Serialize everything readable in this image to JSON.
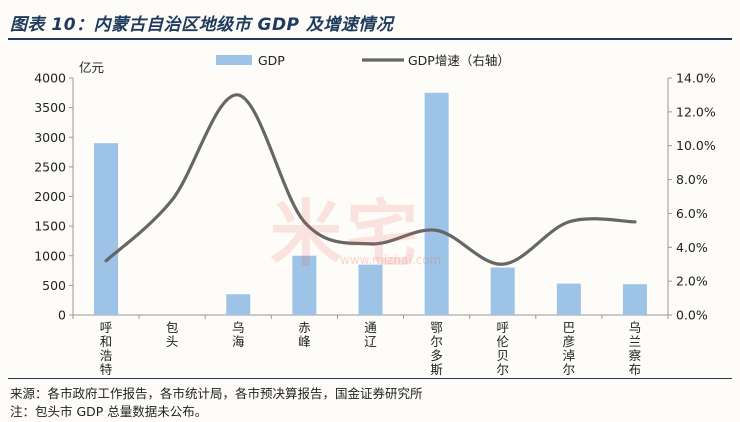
{
  "title": "图表 10：内蒙古自治区地级市 GDP 及增速情况",
  "chart_data": {
    "type": "bar",
    "categories": [
      "呼和浩特",
      "包头",
      "乌海",
      "赤峰",
      "通辽",
      "鄂尔多斯",
      "呼伦贝尔",
      "巴彦淖尔",
      "乌兰察布"
    ],
    "series": [
      {
        "name": "GDP",
        "type": "bar",
        "axis": "left",
        "values": [
          2900,
          0,
          350,
          1000,
          850,
          3750,
          800,
          530,
          520
        ]
      },
      {
        "name": "GDP增速（右轴）",
        "type": "line",
        "axis": "right",
        "values": [
          3.2,
          6.8,
          13.0,
          5.5,
          4.2,
          5.0,
          3.0,
          5.5,
          5.5
        ]
      }
    ],
    "y_left": {
      "unit": "亿元",
      "min": 0,
      "max": 4000,
      "ticks": [
        "0",
        "500",
        "1000",
        "1500",
        "2000",
        "2500",
        "3000",
        "3500",
        "4000"
      ]
    },
    "y_right": {
      "min": 0,
      "max": 14,
      "ticks": [
        "0.0%",
        "2.0%",
        "4.0%",
        "6.0%",
        "8.0%",
        "10.0%",
        "12.0%",
        "14.0%"
      ]
    },
    "legend_position": "top-center",
    "grid": false
  },
  "colors": {
    "bar": "#9dc3e6",
    "line": "#666666",
    "title": "#1f3a5c"
  },
  "source": "来源：各市政府工作报告，各市统计局，各市预决算报告，国金证券研究所",
  "note": "注：包头市 GDP 总量数据未公布。",
  "watermark": {
    "brand": "米宅",
    "url": "www.mizhai.com"
  }
}
